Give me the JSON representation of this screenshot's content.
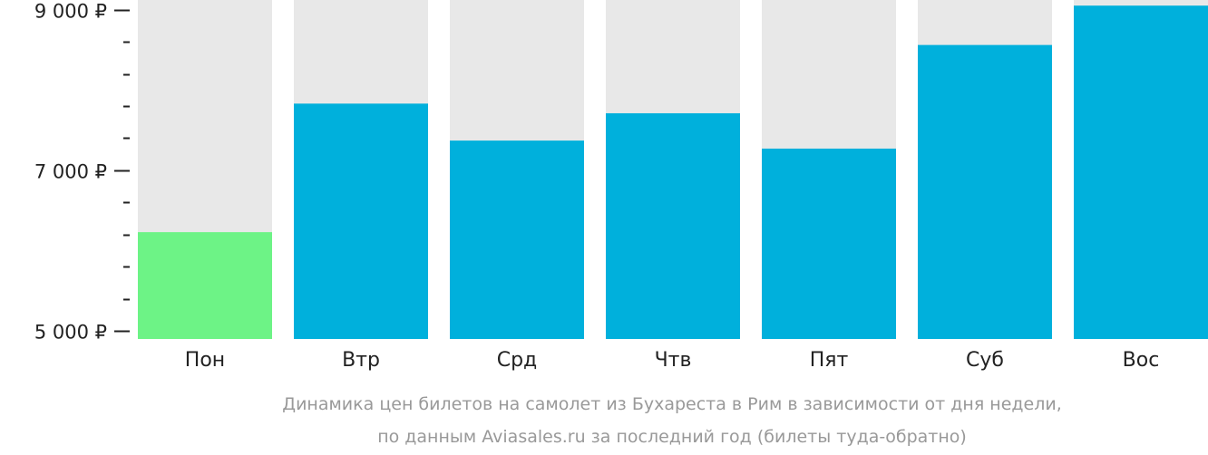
{
  "chart_data": {
    "type": "bar",
    "categories": [
      "Пон",
      "Втр",
      "Срд",
      "Чтв",
      "Пят",
      "Суб",
      "Вос"
    ],
    "values": [
      6230,
      7830,
      7370,
      7710,
      7270,
      8560,
      9050
    ],
    "highlight_index": 0,
    "ylim": [
      4900,
      9120
    ],
    "yticks": [
      {
        "value": 5000,
        "label": "5 000 ₽"
      },
      {
        "value": 7000,
        "label": "7 000 ₽"
      },
      {
        "value": 9000,
        "label": "9 000 ₽"
      }
    ],
    "minor_step": 400,
    "colors": {
      "bar": "#00b0dc",
      "highlight": "#6df386",
      "background_bar": "#e8e8e8",
      "axis": "#222222"
    },
    "caption_lines": [
      "Динамика цен билетов на самолет из Бухареста в Рим в зависимости от дня недели,",
      "по данным Aviasales.ru за последний год (билеты туда-обратно)"
    ]
  }
}
